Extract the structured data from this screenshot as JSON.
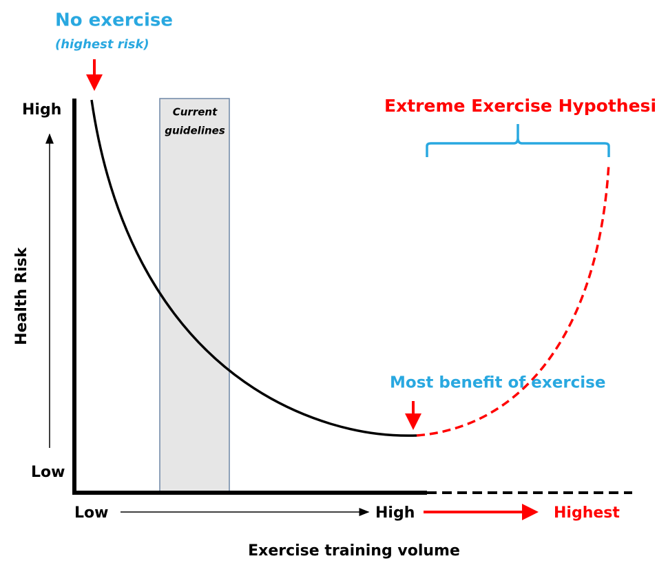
{
  "labels": {
    "no_exercise": "No exercise",
    "highest_risk": "(highest risk)",
    "y_high": "High",
    "y_low": "Low",
    "y_axis_title": "Health Risk",
    "guidelines_lines": [
      "Current",
      "guidelines"
    ],
    "extreme_hypothesis": "Extreme Exercise Hypothesis",
    "most_benefit": "Most benefit of exercise",
    "x_low": "Low",
    "x_high": "High",
    "x_highest": "Highest",
    "x_axis_title": "Exercise training volume"
  }
}
